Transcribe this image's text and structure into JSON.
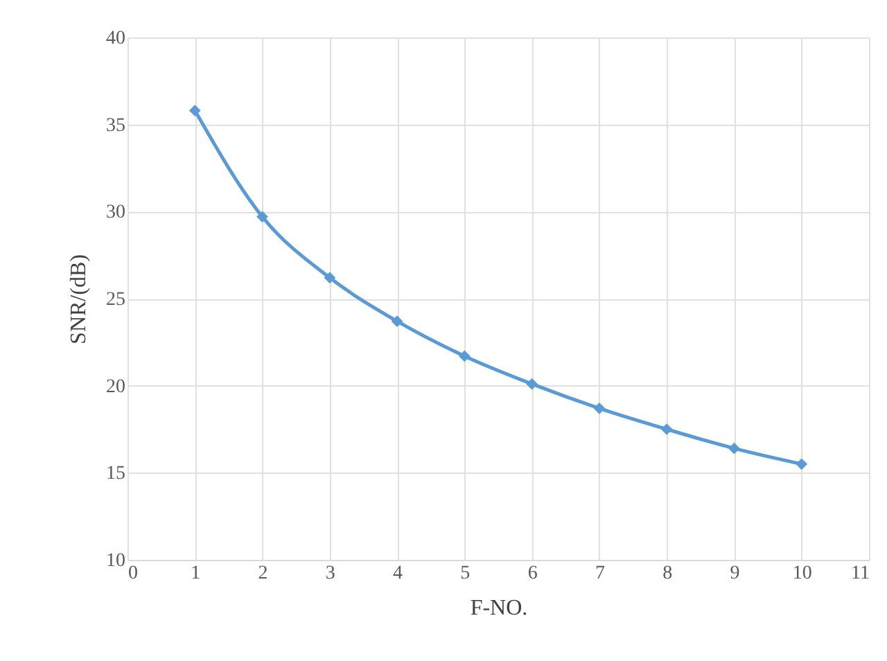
{
  "chart_data": {
    "type": "line",
    "xlabel": "F-NO.",
    "ylabel": "SNR/(dB)",
    "x": [
      1,
      2,
      3,
      4,
      5,
      6,
      7,
      8,
      9,
      10
    ],
    "series": [
      {
        "color": "#5b9bd5",
        "values": [
          35.8,
          29.7,
          26.2,
          23.7,
          21.7,
          20.1,
          18.7,
          17.5,
          16.4,
          15.5
        ]
      }
    ],
    "xlim": [
      0,
      11
    ],
    "xticks": [
      0,
      1,
      2,
      3,
      4,
      5,
      6,
      7,
      8,
      9,
      10,
      11
    ],
    "ylim": [
      10,
      40
    ],
    "yticks": [
      10,
      15,
      20,
      25,
      30,
      35,
      40
    ],
    "grid": true,
    "marker": "diamond",
    "line_style": "solid"
  }
}
